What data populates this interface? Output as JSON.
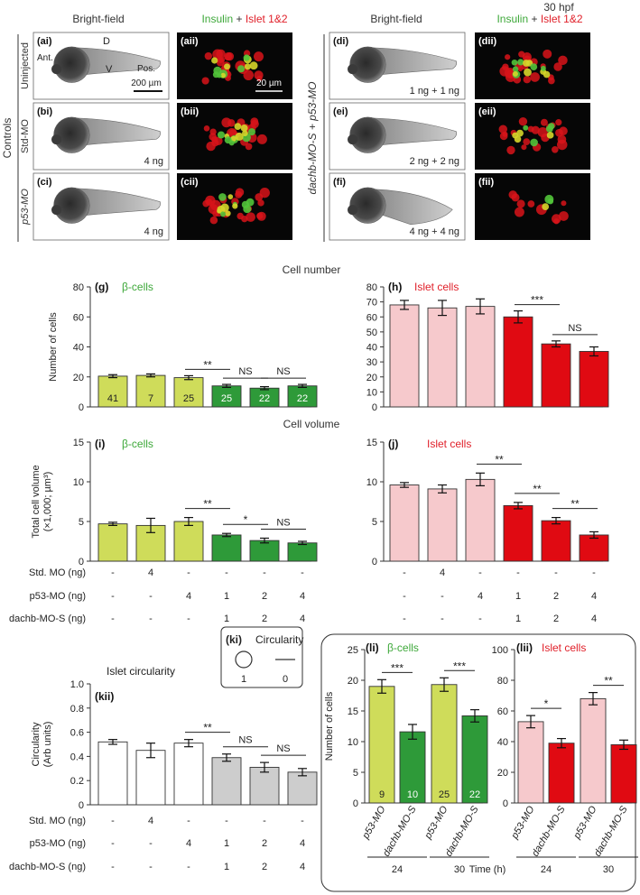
{
  "colors": {
    "green": "#3ea83a",
    "red": "#e0202a",
    "lime": "#cfdc5a",
    "dark_green": "#2e9a39",
    "pink": "#f6c9cc",
    "bar_red": "#e00a12",
    "grey": "#cdcdcd",
    "white": "#ffffff",
    "axis": "#333333"
  },
  "header": {
    "timepoint": "30 hpf",
    "bright_field": "Bright-field",
    "insulin": "Insulin",
    "plus": " + ",
    "islet": "Islet 1&2"
  },
  "panels": {
    "group_controls": "Controls",
    "group_right": "dachb-MO-S + p53-MO",
    "rows_left": [
      {
        "label": "Uninjected",
        "bf": "(ai)",
        "fl": "(aii)",
        "dose": ""
      },
      {
        "label": "Std-MO",
        "bf": "(bi)",
        "fl": "(bii)",
        "dose": "4 ng"
      },
      {
        "label": "p53-MO",
        "bf": "(ci)",
        "fl": "(cii)",
        "dose": "4 ng"
      }
    ],
    "rows_right": [
      {
        "bf": "(di)",
        "fl": "(dii)",
        "dose": "1 ng + 1 ng"
      },
      {
        "bf": "(ei)",
        "fl": "(eii)",
        "dose": "2 ng + 2 ng"
      },
      {
        "bf": "(fi)",
        "fl": "(fii)",
        "dose": "4 ng + 4 ng"
      }
    ],
    "axis_d": "D",
    "axis_ant": "Ant.",
    "axis_v": "V",
    "axis_pos": "Pos.",
    "scale_bf": "200 µm",
    "scale_fl": "20 µm"
  },
  "sections": {
    "cell_number": "Cell number",
    "cell_volume": "Cell volume"
  },
  "treatment_table": {
    "rows": [
      {
        "label": "Std. MO (ng)",
        "values": [
          "-",
          "4",
          "-",
          "-",
          "-",
          "-"
        ]
      },
      {
        "label": "p53-MO (ng)",
        "values": [
          "-",
          "-",
          "4",
          "1",
          "2",
          "4"
        ]
      },
      {
        "label": "dachb-MO-S (ng)",
        "values": [
          "-",
          "-",
          "-",
          "1",
          "2",
          "4"
        ]
      }
    ]
  },
  "ki": {
    "tag": "(ki)",
    "title": "Circularity",
    "v1": "1",
    "v0": "0"
  },
  "chart_data": [
    {
      "id": "g",
      "type": "bar",
      "tag": "(g)",
      "title": "β-cells",
      "ylabel": "Number of cells",
      "ylim": [
        0,
        80
      ],
      "yticks": [
        0,
        20,
        40,
        60,
        80
      ],
      "values": [
        20.5,
        21,
        19.5,
        14,
        12.5,
        14
      ],
      "errors": [
        1,
        1,
        1.3,
        1,
        1,
        1
      ],
      "n_labels": [
        "41",
        "7",
        "25",
        "25",
        "22",
        "22"
      ],
      "significance": [
        {
          "text": "**",
          "from": 2,
          "to": 3
        },
        {
          "text": "NS",
          "from": 3,
          "to": 4
        },
        {
          "text": "NS",
          "from": 4,
          "to": 5
        }
      ]
    },
    {
      "id": "h",
      "type": "bar",
      "tag": "(h)",
      "title": "Islet cells",
      "ylim": [
        0,
        80
      ],
      "yticks": [
        0,
        10,
        20,
        30,
        40,
        50,
        60,
        70,
        80
      ],
      "values": [
        68,
        66,
        67,
        60,
        42,
        37
      ],
      "errors": [
        3,
        5,
        5,
        4,
        2,
        3
      ],
      "significance": [
        {
          "text": "***",
          "from": 3,
          "to": 4
        },
        {
          "text": "NS",
          "from": 4,
          "to": 5
        }
      ]
    },
    {
      "id": "i",
      "type": "bar",
      "tag": "(i)",
      "title": "β-cells",
      "ylabel": "Total cell volume",
      "ylabel2": "(×1,000; µm³)",
      "ylim": [
        0,
        15
      ],
      "yticks": [
        0,
        5,
        10,
        15
      ],
      "values": [
        4.7,
        4.5,
        5.0,
        3.3,
        2.6,
        2.3
      ],
      "errors": [
        0.2,
        0.9,
        0.5,
        0.2,
        0.3,
        0.2
      ],
      "significance": [
        {
          "text": "**",
          "from": 2,
          "to": 3
        },
        {
          "text": "*",
          "from": 3,
          "to": 4
        },
        {
          "text": "NS",
          "from": 4,
          "to": 5
        }
      ]
    },
    {
      "id": "j",
      "type": "bar",
      "tag": "(j)",
      "title": "Islet cells",
      "ylim": [
        0,
        15
      ],
      "yticks": [
        0,
        5,
        10,
        15
      ],
      "values": [
        9.6,
        9.1,
        10.3,
        7.0,
        5.1,
        3.3
      ],
      "errors": [
        0.3,
        0.5,
        0.8,
        0.4,
        0.4,
        0.4
      ],
      "significance": [
        {
          "text": "**",
          "from": 2,
          "to": 3
        },
        {
          "text": "**",
          "from": 3,
          "to": 4
        },
        {
          "text": "**",
          "from": 4,
          "to": 5
        }
      ]
    },
    {
      "id": "kii",
      "type": "bar",
      "tag": "(kii)",
      "title": "Islet circularity",
      "ylabel": "Circularity",
      "ylabel2": "(Arb units)",
      "ylim": [
        0,
        1.0
      ],
      "yticks": [
        "0",
        "0.2",
        "0.4",
        "0.6",
        "0.8",
        "1.0"
      ],
      "values": [
        0.52,
        0.45,
        0.51,
        0.39,
        0.31,
        0.27
      ],
      "errors": [
        0.02,
        0.06,
        0.03,
        0.03,
        0.04,
        0.03
      ],
      "significance": [
        {
          "text": "**",
          "from": 2,
          "to": 3
        },
        {
          "text": "NS",
          "from": 3,
          "to": 4
        },
        {
          "text": "NS",
          "from": 4,
          "to": 5
        }
      ]
    },
    {
      "id": "li",
      "type": "bar",
      "tag": "(li)",
      "title": "β-cells",
      "ylabel": "Number of cells",
      "ylim": [
        0,
        25
      ],
      "yticks": [
        0,
        5,
        10,
        15,
        20,
        25
      ],
      "categories": [
        "p53-MO",
        "dachb-MO-S",
        "p53-MO",
        "dachb-MO-S"
      ],
      "values": [
        19,
        11.6,
        19.3,
        14.2
      ],
      "errors": [
        1.1,
        1.2,
        1.1,
        1.0
      ],
      "n_labels": [
        "9",
        "10",
        "25",
        "22"
      ],
      "time_groups": [
        "24",
        "30"
      ],
      "significance": [
        {
          "text": "***",
          "from": 0,
          "to": 1
        },
        {
          "text": "***",
          "from": 2,
          "to": 3
        }
      ]
    },
    {
      "id": "lii",
      "type": "bar",
      "tag": "(lii)",
      "title": "Islet cells",
      "ylim": [
        0,
        100
      ],
      "yticks": [
        0,
        20,
        40,
        60,
        80,
        100
      ],
      "categories": [
        "p53-MO",
        "dachb-MO-S",
        "p53-MO",
        "dachb-MO-S"
      ],
      "values": [
        53,
        39,
        68,
        38
      ],
      "errors": [
        4,
        3,
        4,
        3
      ],
      "time_groups": [
        "24",
        "30"
      ],
      "xlabel": "Time (h)",
      "significance": [
        {
          "text": "*",
          "from": 0,
          "to": 1
        },
        {
          "text": "**",
          "from": 2,
          "to": 3
        }
      ]
    }
  ]
}
